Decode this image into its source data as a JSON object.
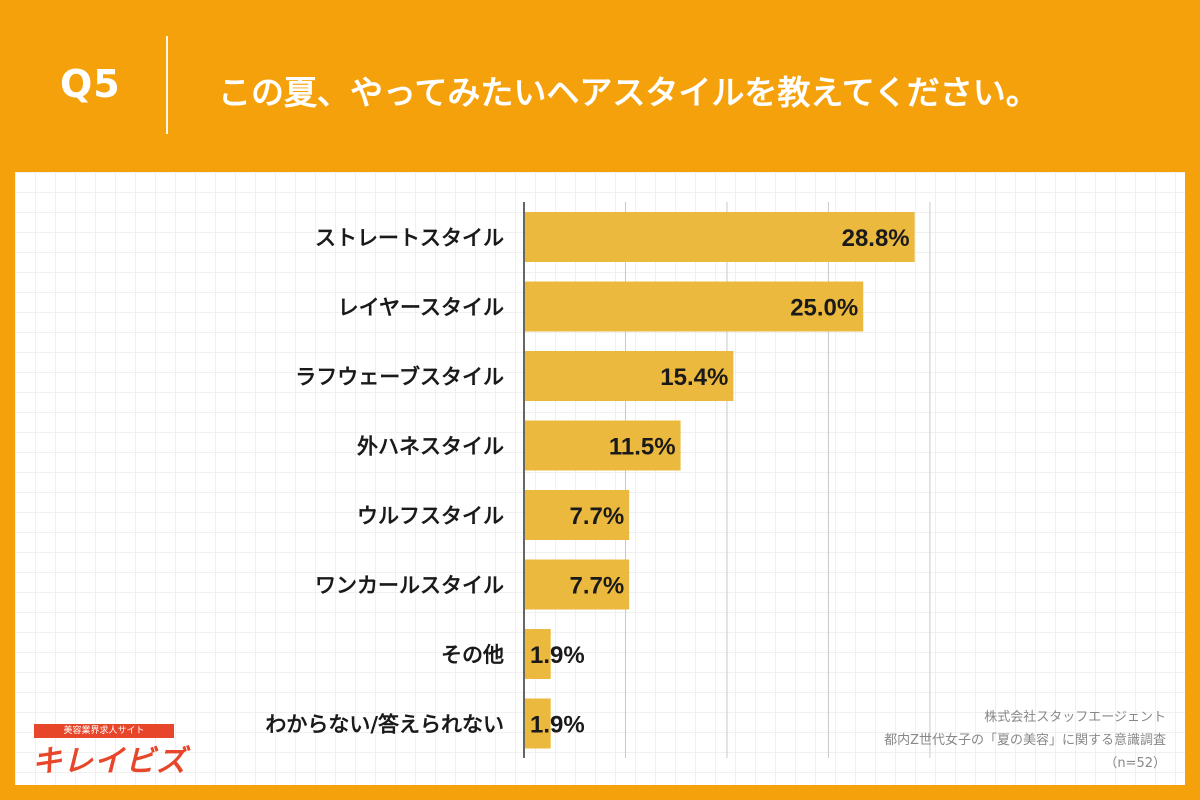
{
  "header": {
    "question_number": "Q5",
    "question_text": "この夏、やってみたいヘアスタイルを教えてください。"
  },
  "chart_data": {
    "type": "bar",
    "orientation": "horizontal",
    "categories": [
      "ストレートスタイル",
      "レイヤースタイル",
      "ラフウェーブスタイル",
      "外ハネスタイル",
      "ウルフスタイル",
      "ワンカールスタイル",
      "その他",
      "わからない/答えられない"
    ],
    "values": [
      28.8,
      25.0,
      15.4,
      11.5,
      7.7,
      7.7,
      1.9,
      1.9
    ],
    "value_labels": [
      "28.8%",
      "25.0%",
      "15.4%",
      "11.5%",
      "7.7%",
      "7.7%",
      "1.9%",
      "1.9%"
    ],
    "xlim": [
      0,
      40
    ],
    "grid": true,
    "colors": {
      "bar": "#ecb93f",
      "background": "#f5a10c"
    }
  },
  "source": {
    "line1": "株式会社スタッフエージェント",
    "line2": "都内Z世代女子の「夏の美容」に関する意識調査",
    "line3": "（n=52）"
  },
  "logo": {
    "tagline": "美容業界求人サイト",
    "name": "キレイビズ"
  }
}
